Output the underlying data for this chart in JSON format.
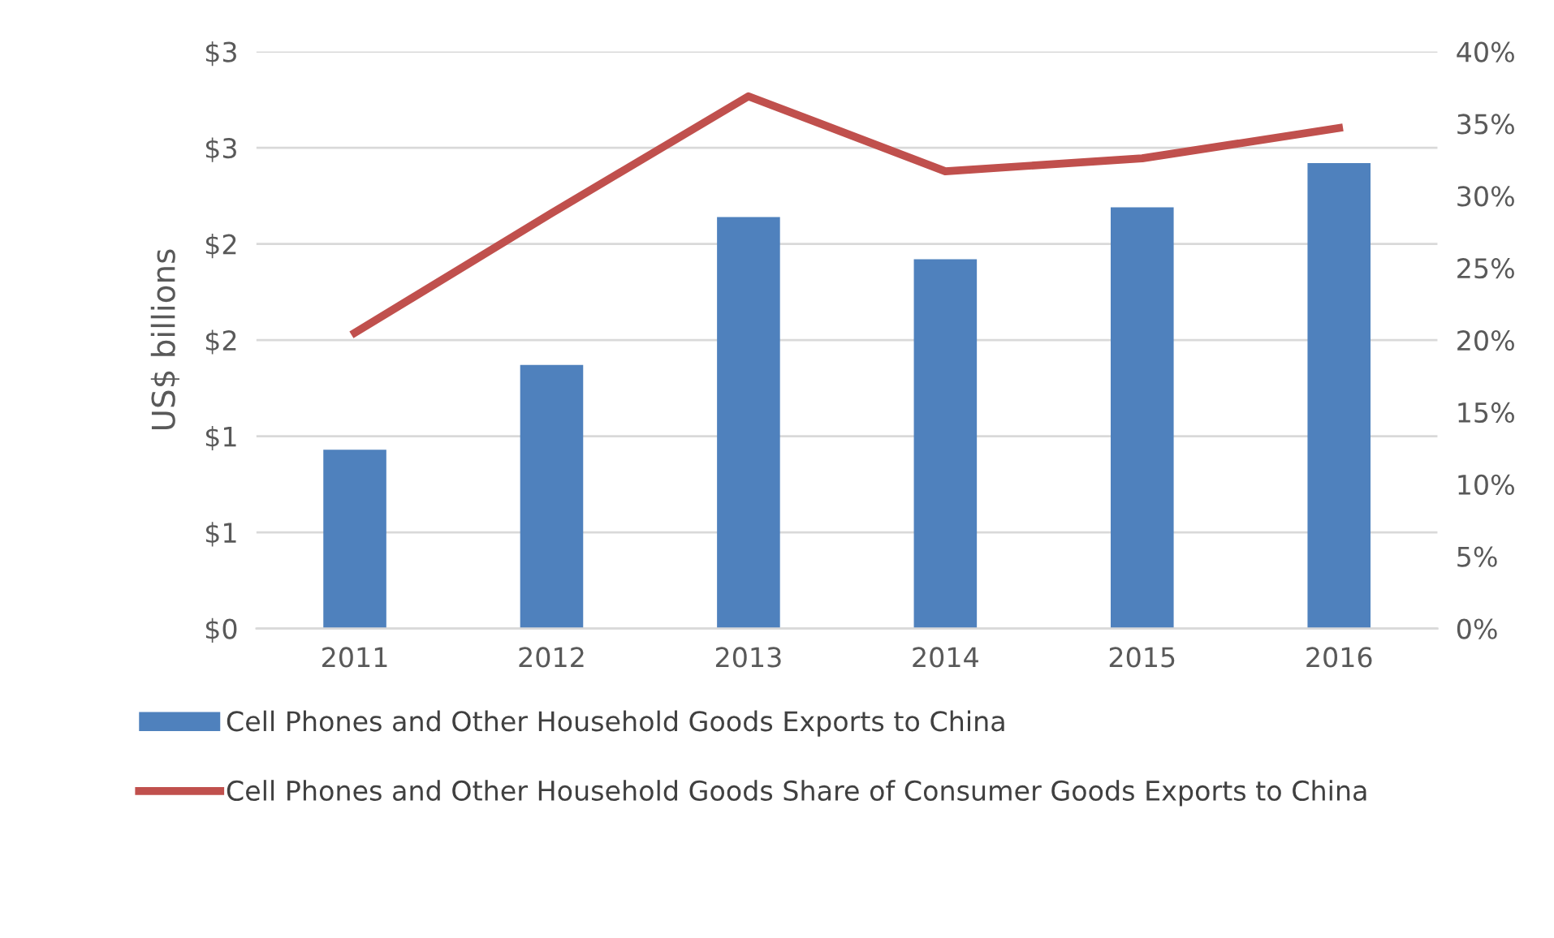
{
  "chart_data": {
    "type": "bar",
    "ylabel": "US$ billions",
    "categories": [
      "2011",
      "2012",
      "2013",
      "2014",
      "2015",
      "2016"
    ],
    "series": [
      {
        "name": "Cell Phones and Other Household Goods Exports to China",
        "color": "#4f81bd",
        "values": [
          0.93,
          1.37,
          2.14,
          1.92,
          2.19,
          2.42
        ]
      },
      {
        "name": "Cell Phones and Other Household Goods Share of Consumer Goods Exports to China",
        "type": "line",
        "axis": "y2",
        "color": "#c0504d",
        "values": [
          20.5,
          28.8,
          36.9,
          31.7,
          32.6,
          34.7
        ]
      }
    ],
    "ylim": [
      0,
      3
    ],
    "yticks": [
      {
        "value": 0,
        "label": "$0"
      },
      {
        "value": 0.5,
        "label": "$1"
      },
      {
        "value": 1,
        "label": "$1"
      },
      {
        "value": 1.5,
        "label": "$2"
      },
      {
        "value": 2,
        "label": "$2"
      },
      {
        "value": 2.5,
        "label": "$3"
      },
      {
        "value": 3,
        "label": "$3"
      }
    ],
    "y2lim": [
      0,
      40
    ],
    "y2ticks": [
      {
        "value": 0,
        "label": "0%"
      },
      {
        "value": 5,
        "label": "5%"
      },
      {
        "value": 10,
        "label": "10%"
      },
      {
        "value": 15,
        "label": "15%"
      },
      {
        "value": 20,
        "label": "20%"
      },
      {
        "value": 25,
        "label": "25%"
      },
      {
        "value": 30,
        "label": "30%"
      },
      {
        "value": 35,
        "label": "35%"
      },
      {
        "value": 40,
        "label": "40%"
      }
    ],
    "grid": "y",
    "legend": "bottom",
    "marker": "none",
    "line_style": "solid"
  }
}
